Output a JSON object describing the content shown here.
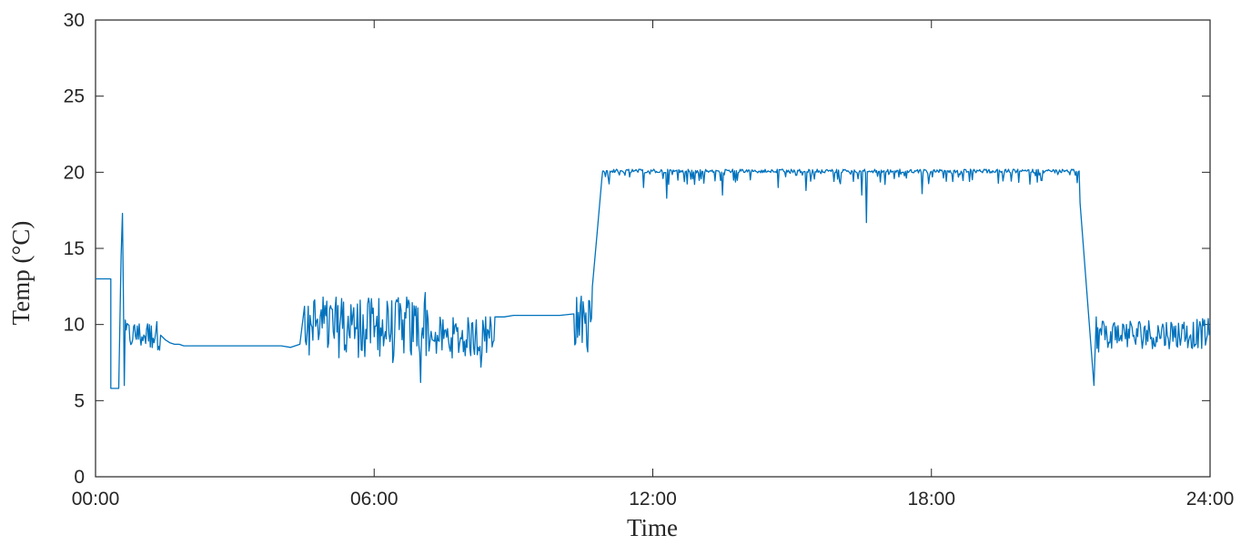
{
  "chart_data": {
    "type": "line",
    "title": "",
    "xlabel": "Time",
    "ylabel": "Temp (°C)",
    "xlim": [
      0,
      24
    ],
    "ylim": [
      0,
      30
    ],
    "x_ticks": [
      "00:00",
      "06:00",
      "12:00",
      "18:00",
      "24:00"
    ],
    "y_ticks": [
      0,
      5,
      10,
      15,
      20,
      25,
      30
    ],
    "grid": false,
    "series": [
      {
        "color": "#0072BD",
        "x": [
          0,
          0.33,
          0.33,
          0.45,
          0.5,
          0.55,
          0.58,
          0.6,
          0.62,
          0.7,
          0.8,
          0.9,
          1.0,
          1.1,
          1.2,
          1.3,
          1.4,
          1.5,
          1.6,
          1.7,
          1.8,
          1.9,
          2.0,
          2.2,
          2.5,
          3.0,
          3.5,
          4.0,
          4.2,
          4.4,
          4.5,
          4.6,
          4.7,
          4.8,
          4.9,
          5.0,
          5.1,
          5.2,
          5.3,
          5.4,
          5.5,
          5.6,
          5.7,
          5.8,
          5.9,
          6.0,
          6.1,
          6.2,
          6.3,
          6.4,
          6.5,
          6.6,
          6.7,
          6.8,
          6.9,
          7.0,
          7.1,
          7.2,
          7.25,
          7.3,
          7.4,
          7.6,
          7.8,
          8.0,
          8.2,
          8.3,
          8.4,
          8.5,
          8.6,
          8.8,
          9.0,
          9.5,
          10.0,
          10.3,
          10.4,
          10.5,
          10.6,
          10.7,
          10.8,
          10.9,
          11.0,
          11.2,
          11.4,
          11.6,
          11.8,
          12.0,
          12.3,
          12.6,
          12.9,
          13.2,
          13.5,
          13.8,
          14.1,
          14.4,
          14.7,
          15.0,
          15.3,
          15.6,
          15.9,
          16.2,
          16.5,
          16.6,
          16.8,
          17.0,
          17.4,
          17.8,
          18.2,
          18.6,
          19.0,
          19.5,
          20.0,
          20.5,
          20.9,
          21.0,
          21.2,
          21.4,
          21.5,
          21.55,
          21.6,
          21.7,
          21.8,
          21.9,
          22.0,
          22.2,
          22.4,
          22.6,
          22.8,
          23.0,
          23.2,
          23.4,
          23.6,
          23.8,
          24.0
        ],
        "y": [
          13.0,
          13.0,
          5.8,
          5.8,
          5.8,
          14.5,
          17.3,
          12.0,
          6.0,
          10.0,
          9.0,
          9.9,
          9.2,
          9.7,
          9.9,
          9.6,
          9.3,
          9.0,
          8.8,
          8.7,
          8.7,
          8.6,
          8.6,
          8.6,
          8.6,
          8.6,
          8.6,
          8.6,
          8.5,
          8.7,
          11.2,
          8.0,
          11.5,
          9.0,
          11.8,
          8.5,
          11.0,
          9.5,
          11.7,
          8.2,
          11.3,
          9.8,
          11.6,
          7.9,
          11.4,
          9.2,
          11.7,
          8.6,
          11.0,
          7.5,
          11.5,
          9.0,
          11.8,
          8.0,
          11.2,
          6.2,
          12.1,
          8.8,
          9.0,
          8.9,
          8.9,
          9.0,
          9.8,
          8.5,
          10.3,
          7.2,
          10.5,
          10.5,
          10.5,
          10.5,
          10.6,
          10.6,
          10.6,
          10.7,
          10.8,
          11.5,
          8.2,
          12.5,
          16.0,
          19.5,
          20.1,
          20.1,
          19.8,
          20.1,
          19.0,
          20.1,
          18.3,
          20.1,
          19.2,
          20.0,
          18.5,
          20.1,
          19.5,
          20.0,
          19.0,
          20.1,
          18.8,
          20.0,
          19.4,
          20.1,
          18.5,
          16.7,
          20.0,
          19.2,
          20.0,
          18.6,
          20.1,
          19.9,
          20.1,
          20.0,
          20.1,
          20.1,
          20.1,
          20.1,
          18.0,
          10.0,
          6.0,
          10.5,
          8.2,
          10.2,
          8.5,
          9.8,
          8.8,
          10.0,
          8.7,
          9.9,
          8.6,
          9.8,
          8.9,
          10.0,
          8.5,
          9.9,
          9.3
        ],
        "variability": [
          {
            "from": 0.6,
            "to": 1.4,
            "min": 8.3,
            "max": 10.3
          },
          {
            "from": 4.45,
            "to": 7.25,
            "min": 7.8,
            "max": 11.8
          },
          {
            "from": 7.3,
            "to": 8.6,
            "min": 7.8,
            "max": 10.5
          },
          {
            "from": 10.3,
            "to": 10.7,
            "min": 8.5,
            "max": 12.0
          },
          {
            "from": 10.85,
            "to": 21.3,
            "min": 19.2,
            "max": 20.2
          },
          {
            "from": 21.55,
            "to": 24.0,
            "min": 8.4,
            "max": 10.4
          }
        ]
      }
    ]
  }
}
